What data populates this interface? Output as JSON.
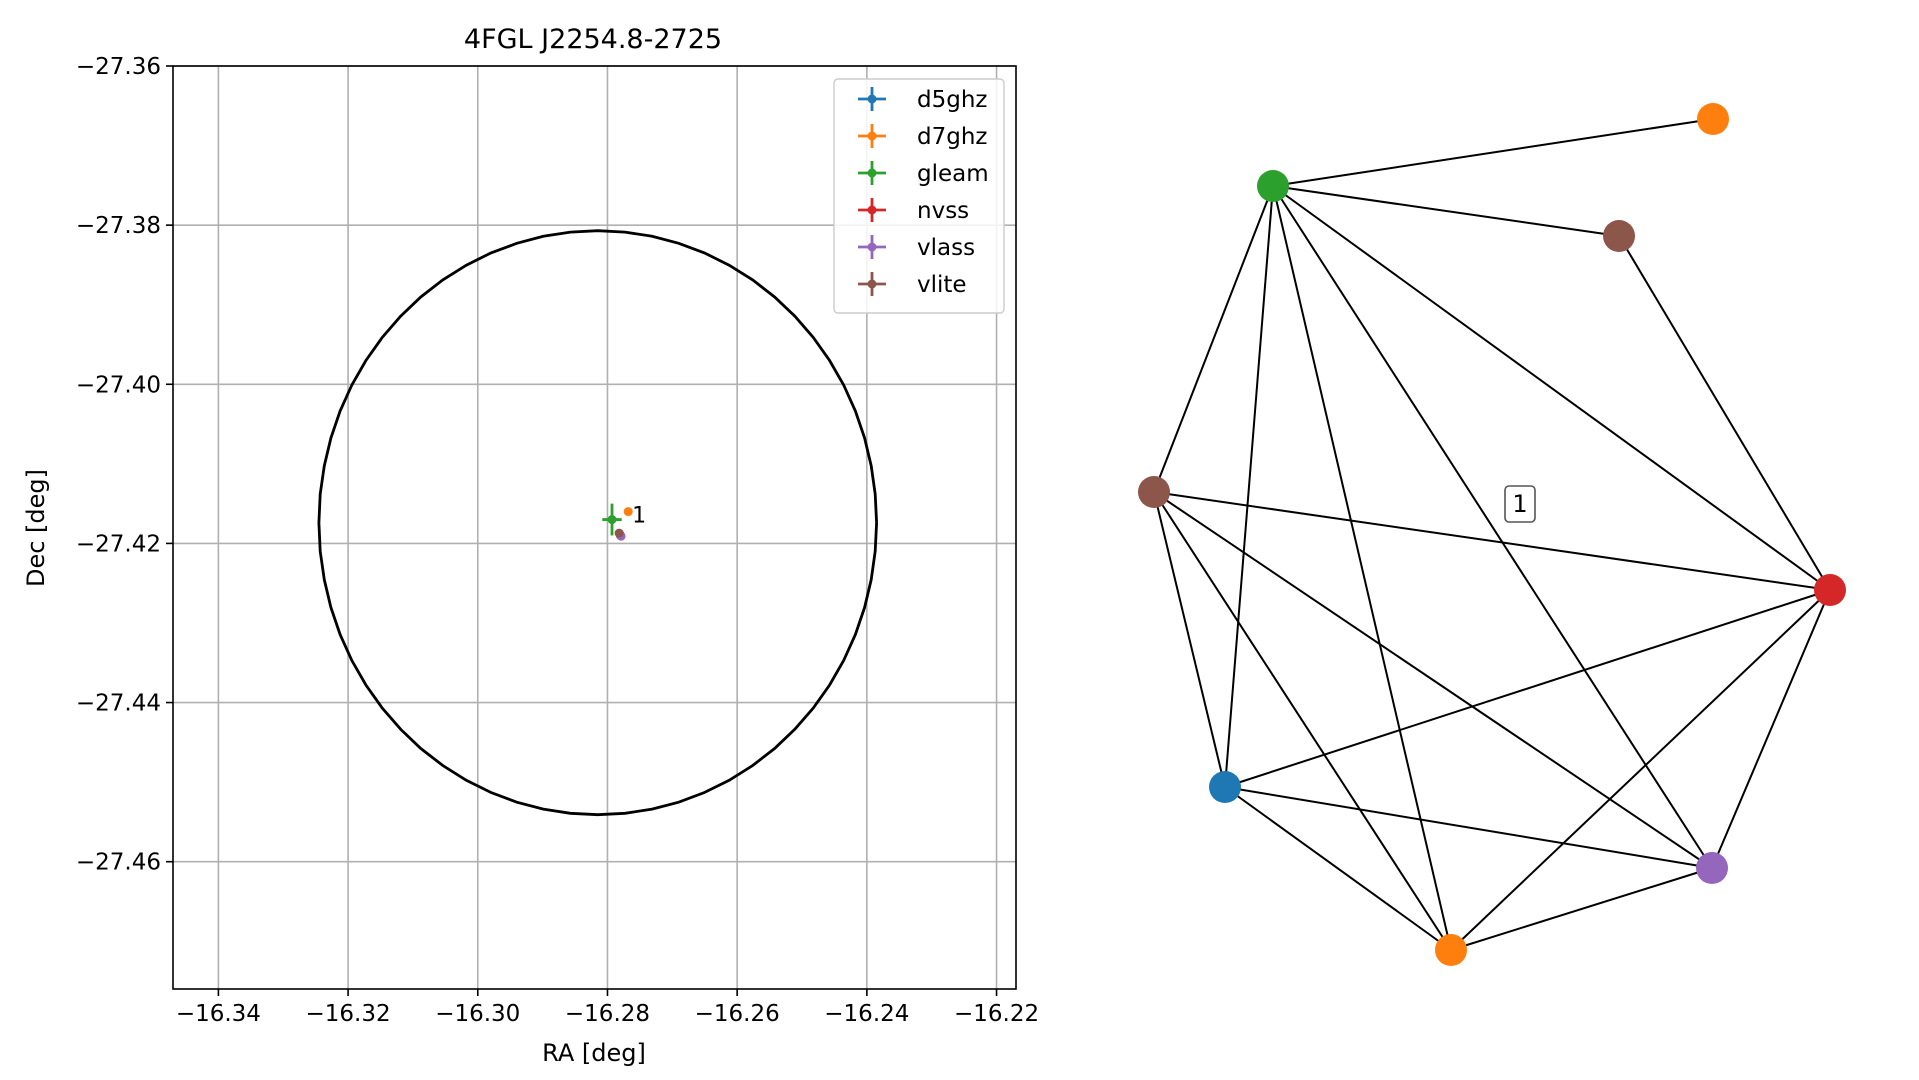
{
  "chart_data": [
    {
      "type": "scatter",
      "title": "4FGL J2254.8-2725",
      "xlabel": "RA [deg]",
      "ylabel": "Dec [deg]",
      "xlim": [
        -16.347,
        -16.217
      ],
      "ylim": [
        -27.476,
        -27.36
      ],
      "xticks": [
        -16.34,
        -16.32,
        -16.3,
        -16.28,
        -16.26,
        -16.24,
        -16.22
      ],
      "yticks": [
        -27.36,
        -27.38,
        -27.4,
        -27.42,
        -27.44,
        -27.46
      ],
      "xtick_labels": [
        "−16.34",
        "−16.32",
        "−16.30",
        "−16.28",
        "−16.26",
        "−16.24",
        "−16.22"
      ],
      "ytick_labels": [
        "−27.36",
        "−27.38",
        "−27.40",
        "−27.42",
        "−27.44",
        "−27.46"
      ],
      "grid": true,
      "legend_position": "top-right",
      "ellipse": {
        "center": [
          -16.2815,
          -27.4174
        ],
        "semi_axis_ra": 0.043,
        "semi_axis_dec": 0.0367,
        "color": "#000000"
      },
      "series": [
        {
          "name": "d5ghz",
          "color": "#1f77b4",
          "points": [
            {
              "x": -16.278,
              "y": -27.419,
              "xerr": 0,
              "yerr": 0
            }
          ]
        },
        {
          "name": "d7ghz",
          "color": "#ff7f0e",
          "points": [
            {
              "x": -16.2768,
              "y": -27.416,
              "xerr": 0,
              "yerr": 0
            }
          ]
        },
        {
          "name": "gleam",
          "color": "#2ca02c",
          "points": [
            {
              "x": -16.2793,
              "y": -27.417,
              "xerr": 0.0015,
              "yerr": 0.002
            }
          ]
        },
        {
          "name": "nvss",
          "color": "#d62728",
          "points": [
            {
              "x": -16.278,
              "y": -27.419,
              "xerr": 0,
              "yerr": 0
            }
          ]
        },
        {
          "name": "vlass",
          "color": "#9467bd",
          "points": [
            {
              "x": -16.2779,
              "y": -27.4191,
              "xerr": 0,
              "yerr": 0
            }
          ]
        },
        {
          "name": "vlite",
          "color": "#8c564b",
          "points": [
            {
              "x": -16.2782,
              "y": -27.4187,
              "xerr": 0,
              "yerr": 0
            }
          ]
        }
      ],
      "annotations": [
        {
          "text": "1",
          "x": -16.2762,
          "y": -27.4165
        }
      ]
    },
    {
      "type": "network",
      "nodes": [
        {
          "id": "d5ghz",
          "color": "#1f77b4"
        },
        {
          "id": "d7ghz",
          "color": "#ff7f0e"
        },
        {
          "id": "gleam",
          "color": "#2ca02c"
        },
        {
          "id": "nvss",
          "color": "#d62728"
        },
        {
          "id": "vlass",
          "color": "#9467bd"
        },
        {
          "id": "vlite",
          "color": "#8c564b"
        },
        {
          "id": "d7ghz-isolated",
          "color": "#ff7f0e"
        },
        {
          "id": "vlite-isolated",
          "color": "#8c564b"
        }
      ],
      "edges": [
        [
          "d7ghz-isolated",
          "gleam"
        ],
        [
          "gleam",
          "vlite-isolated"
        ],
        [
          "vlite-isolated",
          "nvss"
        ],
        [
          "gleam",
          "vlite"
        ],
        [
          "gleam",
          "d5ghz"
        ],
        [
          "gleam",
          "d7ghz"
        ],
        [
          "gleam",
          "vlass"
        ],
        [
          "gleam",
          "nvss"
        ],
        [
          "vlite",
          "nvss"
        ],
        [
          "vlite",
          "d5ghz"
        ],
        [
          "vlite",
          "d7ghz"
        ],
        [
          "vlite",
          "vlass"
        ],
        [
          "d5ghz",
          "nvss"
        ],
        [
          "d5ghz",
          "vlass"
        ],
        [
          "d5ghz",
          "d7ghz"
        ],
        [
          "d7ghz",
          "vlass"
        ],
        [
          "d7ghz",
          "nvss"
        ],
        [
          "vlass",
          "nvss"
        ]
      ],
      "labels": [
        {
          "text": "1"
        }
      ]
    }
  ]
}
